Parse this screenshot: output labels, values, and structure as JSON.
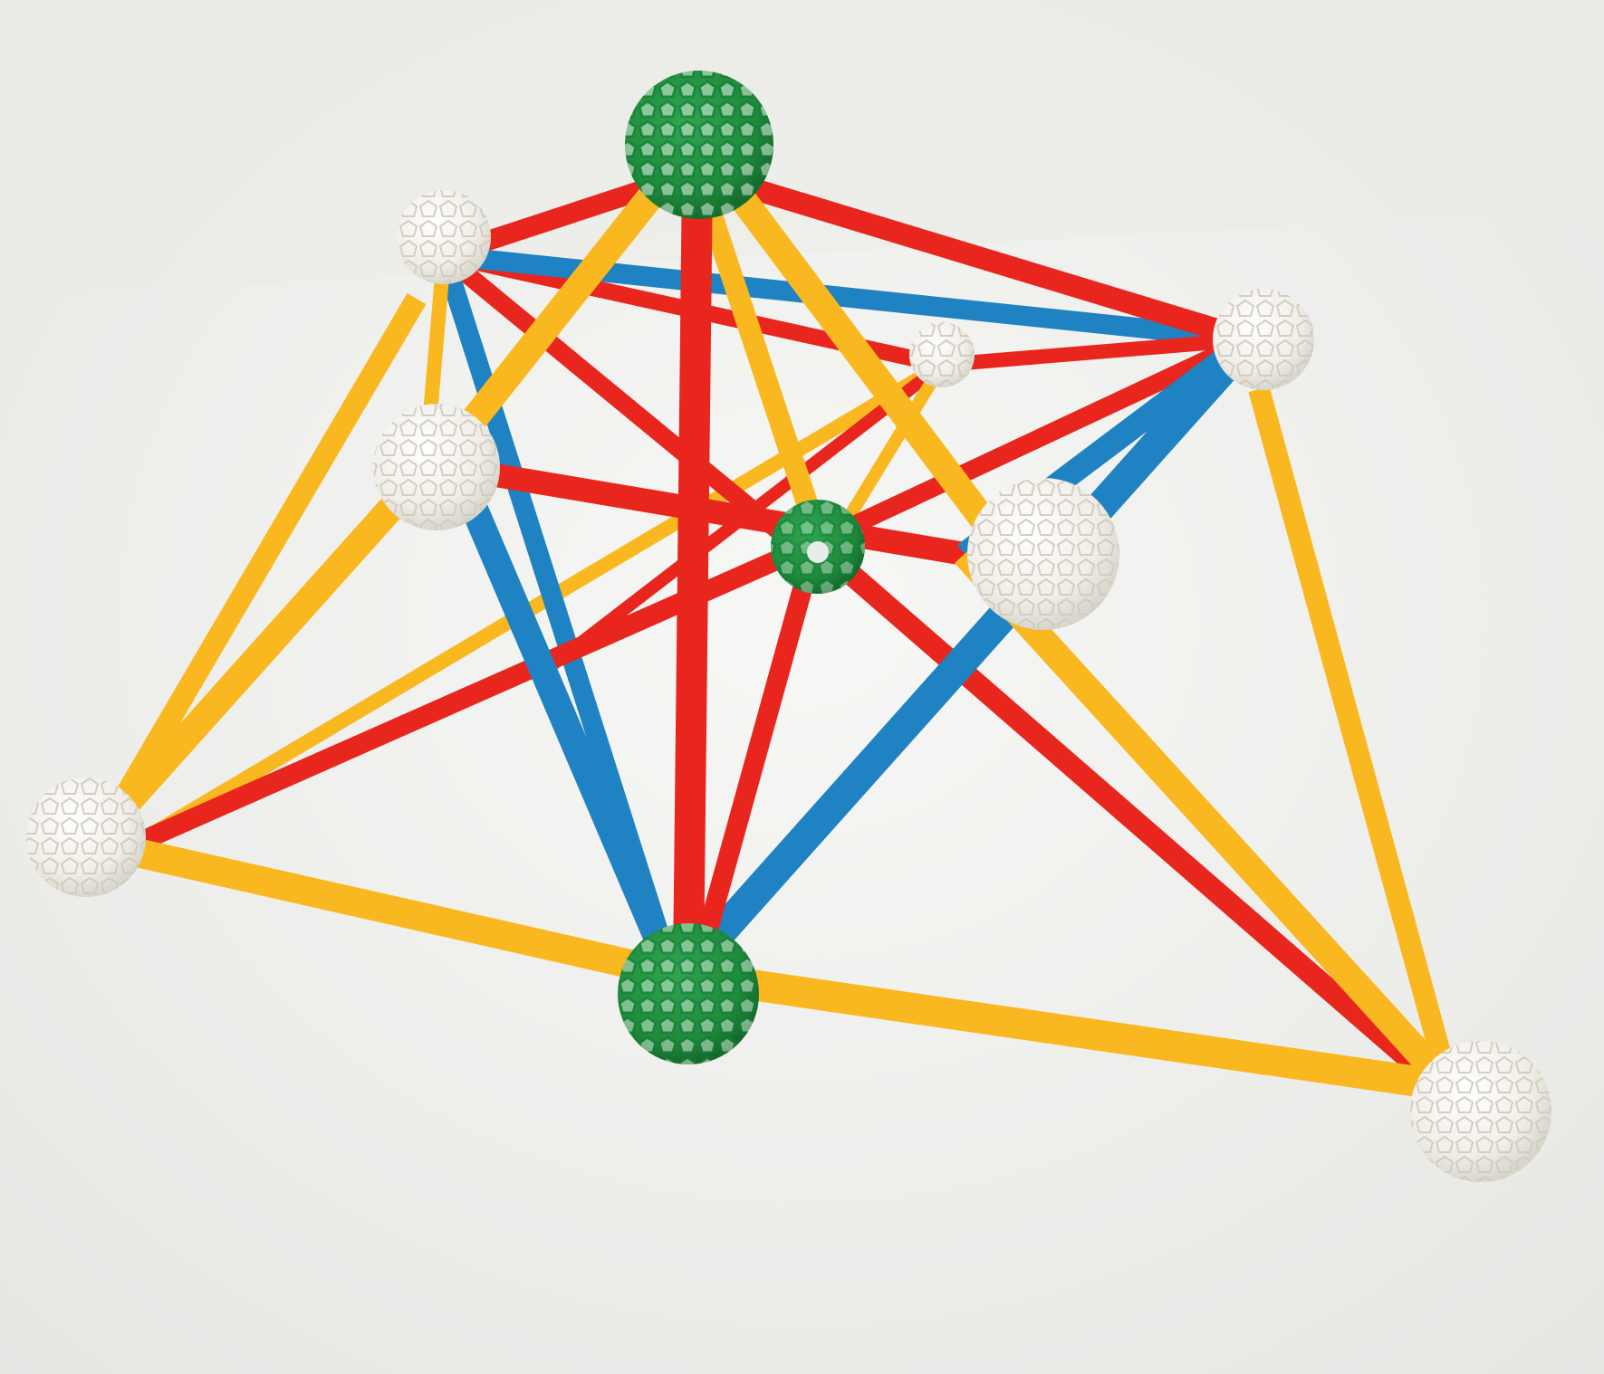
{
  "scene": {
    "background_color": "#f1f1ef",
    "colors": {
      "yellow_strut": "#f9b81f",
      "red_strut": "#e8261e",
      "blue_strut": "#1f82c2",
      "green_hub": "#1e8a3c",
      "white_hub": "#f4f2ec"
    }
  }
}
